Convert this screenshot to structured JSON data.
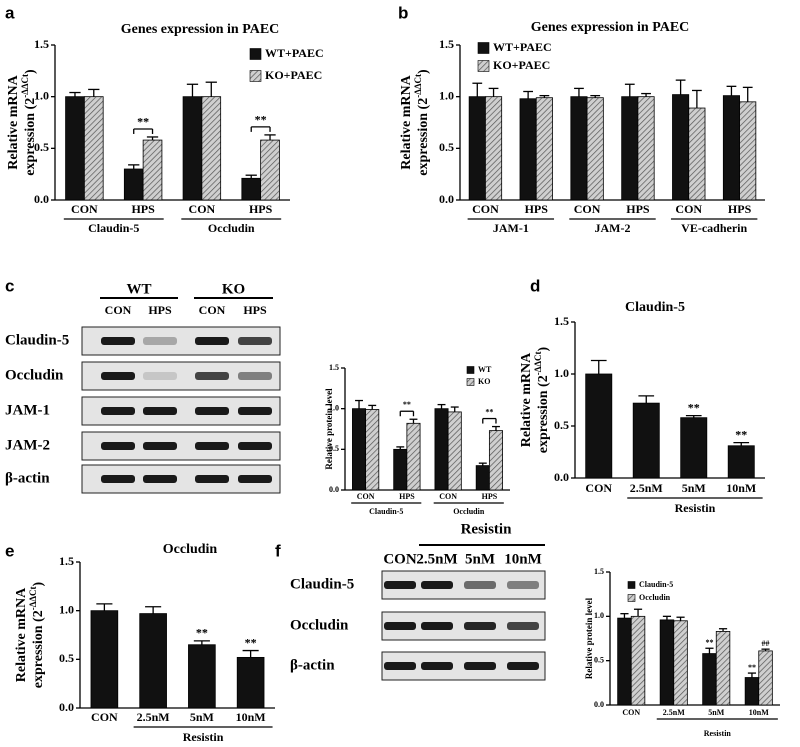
{
  "chart_data": [
    {
      "type": "bar",
      "panel": "a",
      "title": "Genes expression in PAEC",
      "ylabel": "Relative mRNA",
      "ylabel2": "expression (2",
      "ylabel_sup": "-ΔΔCt",
      "ylabel_end": ")",
      "categories": [
        "CON",
        "HPS",
        "CON",
        "HPS"
      ],
      "groups": [
        "Claudin-5",
        "Occludin"
      ],
      "series": [
        {
          "name": "WT+PAEC",
          "color": "#111111",
          "hatch": false,
          "values": [
            1.0,
            0.3,
            1.0,
            0.21
          ],
          "errors": [
            0.04,
            0.04,
            0.12,
            0.03
          ]
        },
        {
          "name": "KO+PAEC",
          "color": "#999999",
          "hatch": true,
          "values": [
            1.0,
            0.58,
            1.0,
            0.58
          ],
          "errors": [
            0.07,
            0.03,
            0.14,
            0.05
          ]
        }
      ],
      "brackets": [
        {
          "index": 1,
          "text": "**"
        },
        {
          "index": 3,
          "text": "**"
        }
      ],
      "ylim": [
        0,
        1.5
      ],
      "yticks": [
        {
          "value": 0,
          "label": "0.0"
        },
        0.5,
        {
          "value": 1,
          "label": "1.0"
        },
        1.5
      ],
      "legend": "upper right"
    },
    {
      "type": "bar",
      "panel": "b",
      "title": "Genes expression in PAEC",
      "ylabel": "Relative mRNA",
      "ylabel2": "expression (2",
      "ylabel_sup": "-ΔΔCt",
      "ylabel_end": ")",
      "categories": [
        "CON",
        "HPS",
        "CON",
        "HPS",
        "CON",
        "HPS"
      ],
      "groups": [
        "JAM-1",
        "JAM-2",
        "VE-cadherin"
      ],
      "series": [
        {
          "name": "WT+PAEC",
          "color": "#111111",
          "hatch": false,
          "values": [
            1.0,
            0.98,
            1.0,
            1.0,
            1.02,
            1.01
          ],
          "errors": [
            0.13,
            0.07,
            0.08,
            0.12,
            0.14,
            0.09
          ]
        },
        {
          "name": "KO+PAEC",
          "color": "#999999",
          "hatch": true,
          "values": [
            1.0,
            0.99,
            0.99,
            1.0,
            0.89,
            0.95
          ],
          "errors": [
            0.08,
            0.02,
            0.02,
            0.03,
            0.17,
            0.14
          ]
        }
      ],
      "ylim": [
        0,
        1.5
      ],
      "yticks": [
        {
          "value": 0,
          "label": "0.0"
        },
        0.5,
        {
          "value": 1,
          "label": "1.0"
        },
        1.5
      ],
      "legend": "upper left"
    },
    {
      "type": "bar",
      "panel": "c",
      "ylabel": "Relative protein level",
      "categories": [
        "CON",
        "HPS",
        "CON",
        "HPS"
      ],
      "groups": [
        "Claudin-5",
        "Occludin"
      ],
      "series": [
        {
          "name": "WT",
          "color": "#111111",
          "hatch": false,
          "values": [
            1.0,
            0.5,
            1.0,
            0.3
          ],
          "errors": [
            0.1,
            0.03,
            0.05,
            0.03
          ]
        },
        {
          "name": "KO",
          "color": "#999999",
          "hatch": true,
          "values": [
            0.99,
            0.82,
            0.96,
            0.73
          ],
          "errors": [
            0.05,
            0.05,
            0.06,
            0.05
          ]
        }
      ],
      "brackets": [
        {
          "index": 1,
          "text": "**"
        },
        {
          "index": 3,
          "text": "**"
        }
      ],
      "ylim": [
        0,
        1.5
      ],
      "yticks": [
        {
          "value": 0,
          "label": "0.0"
        },
        0.5,
        {
          "value": 1,
          "label": "1.0"
        },
        1.5
      ],
      "legend": "upper right"
    },
    {
      "type": "bar",
      "panel": "d",
      "title": "Claudin-5",
      "ylabel": "Relative mRNA",
      "ylabel2": "expression (2",
      "ylabel_sup": "-ΔΔCt",
      "ylabel_end": ")",
      "categories": [
        "CON",
        "2.5nM",
        "5nM",
        "10nM"
      ],
      "group": "Resistin",
      "series": [
        {
          "name": "Claudin-5",
          "color": "#111111",
          "hatch": false,
          "values": [
            1.0,
            0.72,
            0.58,
            0.31
          ],
          "errors": [
            0.13,
            0.07,
            0.02,
            0.03
          ]
        }
      ],
      "annotations": [
        {
          "series": 0,
          "index": 2,
          "text": "**"
        },
        {
          "series": 0,
          "index": 3,
          "text": "**"
        }
      ],
      "ylim": [
        0,
        1.5
      ],
      "yticks": [
        {
          "value": 0,
          "label": "0.0"
        },
        0.5,
        {
          "value": 1,
          "label": "1.0"
        },
        1.5
      ]
    },
    {
      "type": "bar",
      "panel": "e",
      "title": "Occludin",
      "ylabel": "Relative mRNA",
      "ylabel2": "expression (2",
      "ylabel_sup": "-ΔΔCt",
      "ylabel_end": ")",
      "categories": [
        "CON",
        "2.5nM",
        "5nM",
        "10nM"
      ],
      "group": "Resistin",
      "series": [
        {
          "name": "Occludin",
          "color": "#111111",
          "hatch": false,
          "values": [
            1.0,
            0.97,
            0.65,
            0.52
          ],
          "errors": [
            0.07,
            0.07,
            0.04,
            0.07
          ]
        }
      ],
      "annotations": [
        {
          "series": 0,
          "index": 2,
          "text": "**"
        },
        {
          "series": 0,
          "index": 3,
          "text": "**"
        }
      ],
      "ylim": [
        0,
        1.5
      ],
      "yticks": [
        {
          "value": 0,
          "label": "0.0"
        },
        0.5,
        {
          "value": 1,
          "label": "1.0"
        },
        1.5
      ]
    },
    {
      "type": "bar",
      "panel": "f",
      "ylabel": "Relative protein level",
      "categories": [
        "CON",
        "2.5nM",
        "5nM",
        "10nM"
      ],
      "group": "Resistin",
      "series": [
        {
          "name": "Claudin-5",
          "color": "#111111",
          "hatch": false,
          "values": [
            0.98,
            0.96,
            0.58,
            0.31
          ],
          "errors": [
            0.05,
            0.04,
            0.06,
            0.05
          ]
        },
        {
          "name": "Occludin",
          "color": "#999999",
          "hatch": true,
          "values": [
            1.0,
            0.95,
            0.83,
            0.61
          ],
          "errors": [
            0.08,
            0.04,
            0.03,
            0.02
          ]
        }
      ],
      "annotations": [
        {
          "series": 0,
          "index": 2,
          "text": "**"
        },
        {
          "series": 0,
          "index": 3,
          "text": "**"
        },
        {
          "series": 1,
          "index": 3,
          "text": "##"
        }
      ],
      "ylim": [
        0,
        1.5
      ],
      "yticks": [
        {
          "value": 0,
          "label": "0.0"
        },
        0.5,
        {
          "value": 1,
          "label": "1.0"
        },
        1.5
      ],
      "legend": "upper right"
    }
  ],
  "blots": [
    {
      "groups": [
        "WT",
        "KO"
      ],
      "lanes": [
        "CON",
        "HPS",
        "CON",
        "HPS"
      ],
      "rows": [
        "Claudin-5",
        "Occludin",
        "JAM-1",
        "JAM-2",
        "β-actin"
      ]
    },
    {
      "header": "Resistin",
      "lanes": [
        "CON",
        "2.5nM",
        "5nM",
        "10nM"
      ],
      "rows": [
        "Claudin-5",
        "Occludin",
        "β-actin"
      ]
    }
  ]
}
